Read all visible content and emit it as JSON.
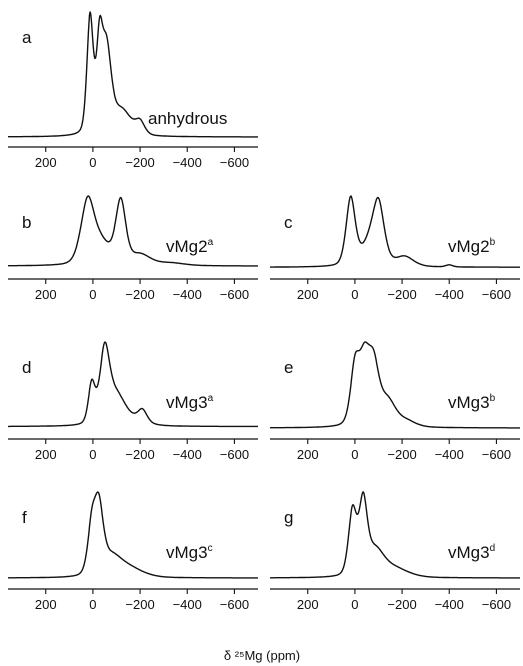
{
  "figure": {
    "xlabel": "δ ²⁵Mg (ppm)"
  },
  "chart_data": [
    {
      "type": "line",
      "panel": "a",
      "label": "anhydrous",
      "xlim": [
        360,
        -700
      ],
      "xticks": [
        200,
        0,
        -200,
        -400,
        -600
      ],
      "xtick_labels": [
        "200",
        "0",
        "−200",
        "−400",
        "−600"
      ],
      "peaks": [
        [
          12,
          1.0,
          14
        ],
        [
          -28,
          0.72,
          14
        ],
        [
          -58,
          0.68,
          20
        ],
        [
          -120,
          0.22,
          45
        ],
        [
          -200,
          0.1,
          20
        ]
      ],
      "baseline": 0.0
    },
    {
      "type": "line",
      "panel": "b",
      "label": "vMg2",
      "label_sup": "a",
      "xlim": [
        360,
        -700
      ],
      "xticks": [
        200,
        0,
        -200,
        -400,
        -600
      ],
      "xtick_labels": [
        "200",
        "0",
        "−200",
        "−400",
        "−600"
      ],
      "peaks": [
        [
          22,
          0.97,
          30
        ],
        [
          -40,
          0.3,
          40
        ],
        [
          -118,
          0.95,
          22
        ],
        [
          -200,
          0.16,
          45
        ],
        [
          -330,
          0.04,
          60
        ]
      ],
      "baseline": 0.03
    },
    {
      "type": "line",
      "panel": "c",
      "label": "vMg2",
      "label_sup": "b",
      "xlim": [
        360,
        -700
      ],
      "xticks": [
        200,
        0,
        -200,
        -400,
        -600
      ],
      "xtick_labels": [
        "200",
        "0",
        "−200",
        "−400",
        "−600"
      ],
      "peaks": [
        [
          18,
          0.95,
          20
        ],
        [
          -60,
          0.3,
          40
        ],
        [
          -100,
          0.8,
          25
        ],
        [
          -210,
          0.14,
          40
        ],
        [
          -400,
          0.03,
          15
        ]
      ],
      "baseline": 0.01
    },
    {
      "type": "line",
      "panel": "d",
      "label": "vMg3",
      "label_sup": "a",
      "xlim": [
        360,
        -700
      ],
      "xticks": [
        200,
        0,
        -200,
        -400,
        -600
      ],
      "xtick_labels": [
        "200",
        "0",
        "−200",
        "−400",
        "−600"
      ],
      "peaks": [
        [
          5,
          0.55,
          15
        ],
        [
          -50,
          1.0,
          22
        ],
        [
          -100,
          0.35,
          35
        ],
        [
          -210,
          0.17,
          20
        ],
        [
          -150,
          0.1,
          60
        ]
      ],
      "baseline": 0.02
    },
    {
      "type": "line",
      "panel": "e",
      "label": "vMg3",
      "label_sup": "b",
      "xlim": [
        360,
        -700
      ],
      "xticks": [
        200,
        0,
        -200,
        -400,
        -600
      ],
      "xtick_labels": [
        "200",
        "0",
        "−200",
        "−400",
        "−600"
      ],
      "peaks": [
        [
          0,
          0.75,
          20
        ],
        [
          -40,
          0.85,
          25
        ],
        [
          -80,
          0.75,
          25
        ],
        [
          -140,
          0.35,
          35
        ],
        [
          -220,
          0.08,
          40
        ]
      ],
      "baseline": 0.0
    },
    {
      "type": "line",
      "panel": "f",
      "label": "vMg3",
      "label_sup": "c",
      "xlim": [
        360,
        -700
      ],
      "xticks": [
        200,
        0,
        -200,
        -400,
        -600
      ],
      "xtick_labels": [
        "200",
        "0",
        "−200",
        "−400",
        "−600"
      ],
      "peaks": [
        [
          5,
          0.7,
          18
        ],
        [
          -25,
          1.0,
          20
        ],
        [
          -80,
          0.3,
          45
        ],
        [
          -160,
          0.13,
          60
        ]
      ],
      "baseline": 0.0
    },
    {
      "type": "line",
      "panel": "g",
      "label": "vMg3",
      "label_sup": "d",
      "xlim": [
        360,
        -700
      ],
      "xticks": [
        200,
        0,
        -200,
        -400,
        -600
      ],
      "xtick_labels": [
        "200",
        "0",
        "−200",
        "−400",
        "−600"
      ],
      "peaks": [
        [
          10,
          0.75,
          18
        ],
        [
          -35,
          0.8,
          18
        ],
        [
          -85,
          0.3,
          40
        ],
        [
          -170,
          0.1,
          60
        ]
      ],
      "baseline": 0.0
    }
  ]
}
